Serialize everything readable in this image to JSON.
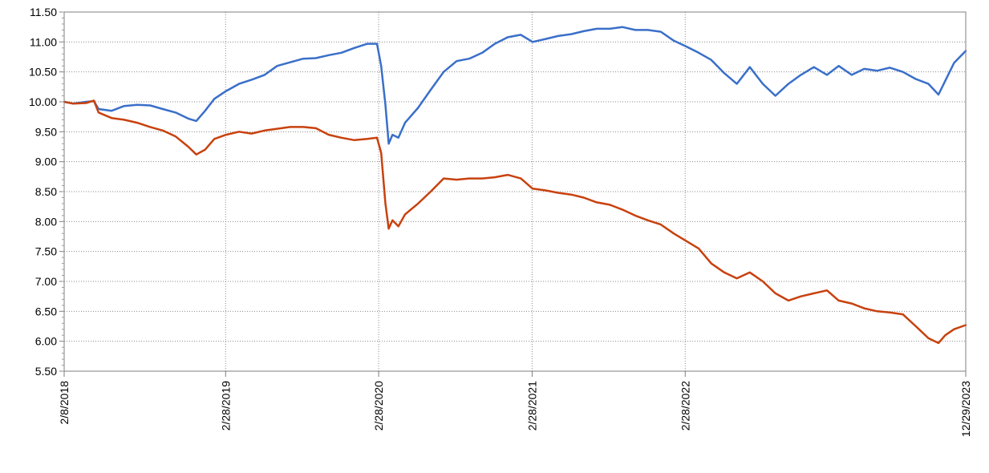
{
  "chart_data": {
    "type": "line",
    "title": "",
    "xlabel": "",
    "ylabel": "",
    "x_ticks": [
      {
        "date": "2018-02-08",
        "label": "2/8/2018"
      },
      {
        "date": "2019-02-28",
        "label": "2/28/2019"
      },
      {
        "date": "2020-02-28",
        "label": "2/28/2020"
      },
      {
        "date": "2021-02-28",
        "label": "2/28/2021"
      },
      {
        "date": "2022-02-28",
        "label": "2/28/2022"
      },
      {
        "date": "2023-12-29",
        "label": "12/29/2023"
      }
    ],
    "xlim": [
      "2018-02-08",
      "2023-12-29"
    ],
    "ylim": [
      5.5,
      11.5
    ],
    "y_ticks": [
      "5.50",
      "6.00",
      "6.50",
      "7.00",
      "7.50",
      "8.00",
      "8.50",
      "9.00",
      "9.50",
      "10.00",
      "10.50",
      "11.00",
      "11.50"
    ],
    "grid": {
      "major_x": true,
      "major_y": true,
      "style": "dotted"
    },
    "legend": "none",
    "series": [
      {
        "color": "#3a6fc9",
        "points": [
          [
            "2018-02-08",
            10.0
          ],
          [
            "2018-03-01",
            9.97
          ],
          [
            "2018-04-01",
            10.0
          ],
          [
            "2018-04-20",
            10.01
          ],
          [
            "2018-05-01",
            9.88
          ],
          [
            "2018-06-01",
            9.85
          ],
          [
            "2018-07-01",
            9.93
          ],
          [
            "2018-08-01",
            9.95
          ],
          [
            "2018-09-01",
            9.94
          ],
          [
            "2018-10-01",
            9.88
          ],
          [
            "2018-11-01",
            9.82
          ],
          [
            "2018-12-01",
            9.72
          ],
          [
            "2018-12-20",
            9.68
          ],
          [
            "2019-01-10",
            9.85
          ],
          [
            "2019-02-01",
            10.05
          ],
          [
            "2019-03-01",
            10.18
          ],
          [
            "2019-04-01",
            10.3
          ],
          [
            "2019-05-01",
            10.37
          ],
          [
            "2019-06-01",
            10.45
          ],
          [
            "2019-07-01",
            10.6
          ],
          [
            "2019-08-01",
            10.66
          ],
          [
            "2019-09-01",
            10.72
          ],
          [
            "2019-10-01",
            10.73
          ],
          [
            "2019-11-01",
            10.78
          ],
          [
            "2019-12-01",
            10.82
          ],
          [
            "2020-01-01",
            10.9
          ],
          [
            "2020-02-01",
            10.97
          ],
          [
            "2020-02-24",
            10.97
          ],
          [
            "2020-03-05",
            10.6
          ],
          [
            "2020-03-15",
            9.95
          ],
          [
            "2020-03-23",
            9.3
          ],
          [
            "2020-04-01",
            9.45
          ],
          [
            "2020-04-15",
            9.4
          ],
          [
            "2020-05-01",
            9.65
          ],
          [
            "2020-06-01",
            9.9
          ],
          [
            "2020-07-01",
            10.2
          ],
          [
            "2020-08-01",
            10.5
          ],
          [
            "2020-09-01",
            10.68
          ],
          [
            "2020-10-01",
            10.72
          ],
          [
            "2020-11-01",
            10.82
          ],
          [
            "2020-12-01",
            10.97
          ],
          [
            "2021-01-01",
            11.08
          ],
          [
            "2021-02-01",
            11.12
          ],
          [
            "2021-03-01",
            11.0
          ],
          [
            "2021-04-01",
            11.05
          ],
          [
            "2021-05-01",
            11.1
          ],
          [
            "2021-06-01",
            11.13
          ],
          [
            "2021-07-01",
            11.18
          ],
          [
            "2021-08-01",
            11.22
          ],
          [
            "2021-09-01",
            11.22
          ],
          [
            "2021-10-01",
            11.25
          ],
          [
            "2021-11-01",
            11.2
          ],
          [
            "2021-12-01",
            11.2
          ],
          [
            "2022-01-01",
            11.17
          ],
          [
            "2022-02-01",
            11.02
          ],
          [
            "2022-03-01",
            10.93
          ],
          [
            "2022-04-01",
            10.82
          ],
          [
            "2022-05-01",
            10.7
          ],
          [
            "2022-06-01",
            10.48
          ],
          [
            "2022-07-01",
            10.3
          ],
          [
            "2022-08-01",
            10.58
          ],
          [
            "2022-09-01",
            10.3
          ],
          [
            "2022-10-01",
            10.1
          ],
          [
            "2022-11-01",
            10.3
          ],
          [
            "2022-12-01",
            10.45
          ],
          [
            "2023-01-01",
            10.58
          ],
          [
            "2023-02-01",
            10.45
          ],
          [
            "2023-03-01",
            10.6
          ],
          [
            "2023-04-01",
            10.45
          ],
          [
            "2023-05-01",
            10.55
          ],
          [
            "2023-06-01",
            10.52
          ],
          [
            "2023-07-01",
            10.57
          ],
          [
            "2023-08-01",
            10.5
          ],
          [
            "2023-09-01",
            10.38
          ],
          [
            "2023-10-01",
            10.3
          ],
          [
            "2023-10-25",
            10.12
          ],
          [
            "2023-11-10",
            10.35
          ],
          [
            "2023-12-01",
            10.65
          ],
          [
            "2023-12-29",
            10.85
          ]
        ]
      },
      {
        "color": "#c8410e",
        "points": [
          [
            "2018-02-08",
            10.0
          ],
          [
            "2018-03-01",
            9.97
          ],
          [
            "2018-04-01",
            9.98
          ],
          [
            "2018-04-20",
            10.02
          ],
          [
            "2018-05-01",
            9.82
          ],
          [
            "2018-06-01",
            9.73
          ],
          [
            "2018-07-01",
            9.7
          ],
          [
            "2018-08-01",
            9.65
          ],
          [
            "2018-09-01",
            9.58
          ],
          [
            "2018-10-01",
            9.52
          ],
          [
            "2018-11-01",
            9.42
          ],
          [
            "2018-12-01",
            9.25
          ],
          [
            "2018-12-20",
            9.12
          ],
          [
            "2019-01-10",
            9.2
          ],
          [
            "2019-02-01",
            9.38
          ],
          [
            "2019-03-01",
            9.45
          ],
          [
            "2019-04-01",
            9.5
          ],
          [
            "2019-05-01",
            9.47
          ],
          [
            "2019-06-01",
            9.52
          ],
          [
            "2019-07-01",
            9.55
          ],
          [
            "2019-08-01",
            9.58
          ],
          [
            "2019-09-01",
            9.58
          ],
          [
            "2019-10-01",
            9.56
          ],
          [
            "2019-11-01",
            9.45
          ],
          [
            "2019-12-01",
            9.4
          ],
          [
            "2020-01-01",
            9.36
          ],
          [
            "2020-02-01",
            9.38
          ],
          [
            "2020-02-24",
            9.4
          ],
          [
            "2020-03-05",
            9.15
          ],
          [
            "2020-03-15",
            8.3
          ],
          [
            "2020-03-23",
            7.88
          ],
          [
            "2020-04-01",
            8.02
          ],
          [
            "2020-04-15",
            7.92
          ],
          [
            "2020-05-01",
            8.12
          ],
          [
            "2020-06-01",
            8.3
          ],
          [
            "2020-07-01",
            8.5
          ],
          [
            "2020-08-01",
            8.72
          ],
          [
            "2020-09-01",
            8.7
          ],
          [
            "2020-10-01",
            8.72
          ],
          [
            "2020-11-01",
            8.72
          ],
          [
            "2020-12-01",
            8.74
          ],
          [
            "2021-01-01",
            8.78
          ],
          [
            "2021-02-01",
            8.72
          ],
          [
            "2021-03-01",
            8.55
          ],
          [
            "2021-04-01",
            8.52
          ],
          [
            "2021-05-01",
            8.48
          ],
          [
            "2021-06-01",
            8.45
          ],
          [
            "2021-07-01",
            8.4
          ],
          [
            "2021-08-01",
            8.32
          ],
          [
            "2021-09-01",
            8.28
          ],
          [
            "2021-10-01",
            8.2
          ],
          [
            "2021-11-01",
            8.1
          ],
          [
            "2021-12-01",
            8.02
          ],
          [
            "2022-01-01",
            7.95
          ],
          [
            "2022-02-01",
            7.8
          ],
          [
            "2022-03-01",
            7.68
          ],
          [
            "2022-04-01",
            7.55
          ],
          [
            "2022-05-01",
            7.3
          ],
          [
            "2022-06-01",
            7.15
          ],
          [
            "2022-07-01",
            7.05
          ],
          [
            "2022-08-01",
            7.15
          ],
          [
            "2022-09-01",
            7.0
          ],
          [
            "2022-10-01",
            6.8
          ],
          [
            "2022-11-01",
            6.68
          ],
          [
            "2022-12-01",
            6.75
          ],
          [
            "2023-01-01",
            6.8
          ],
          [
            "2023-02-01",
            6.85
          ],
          [
            "2023-03-01",
            6.68
          ],
          [
            "2023-04-01",
            6.63
          ],
          [
            "2023-05-01",
            6.55
          ],
          [
            "2023-06-01",
            6.5
          ],
          [
            "2023-07-01",
            6.48
          ],
          [
            "2023-08-01",
            6.45
          ],
          [
            "2023-09-01",
            6.25
          ],
          [
            "2023-10-01",
            6.05
          ],
          [
            "2023-10-25",
            5.97
          ],
          [
            "2023-11-10",
            6.1
          ],
          [
            "2023-12-01",
            6.2
          ],
          [
            "2023-12-29",
            6.27
          ]
        ]
      }
    ]
  }
}
